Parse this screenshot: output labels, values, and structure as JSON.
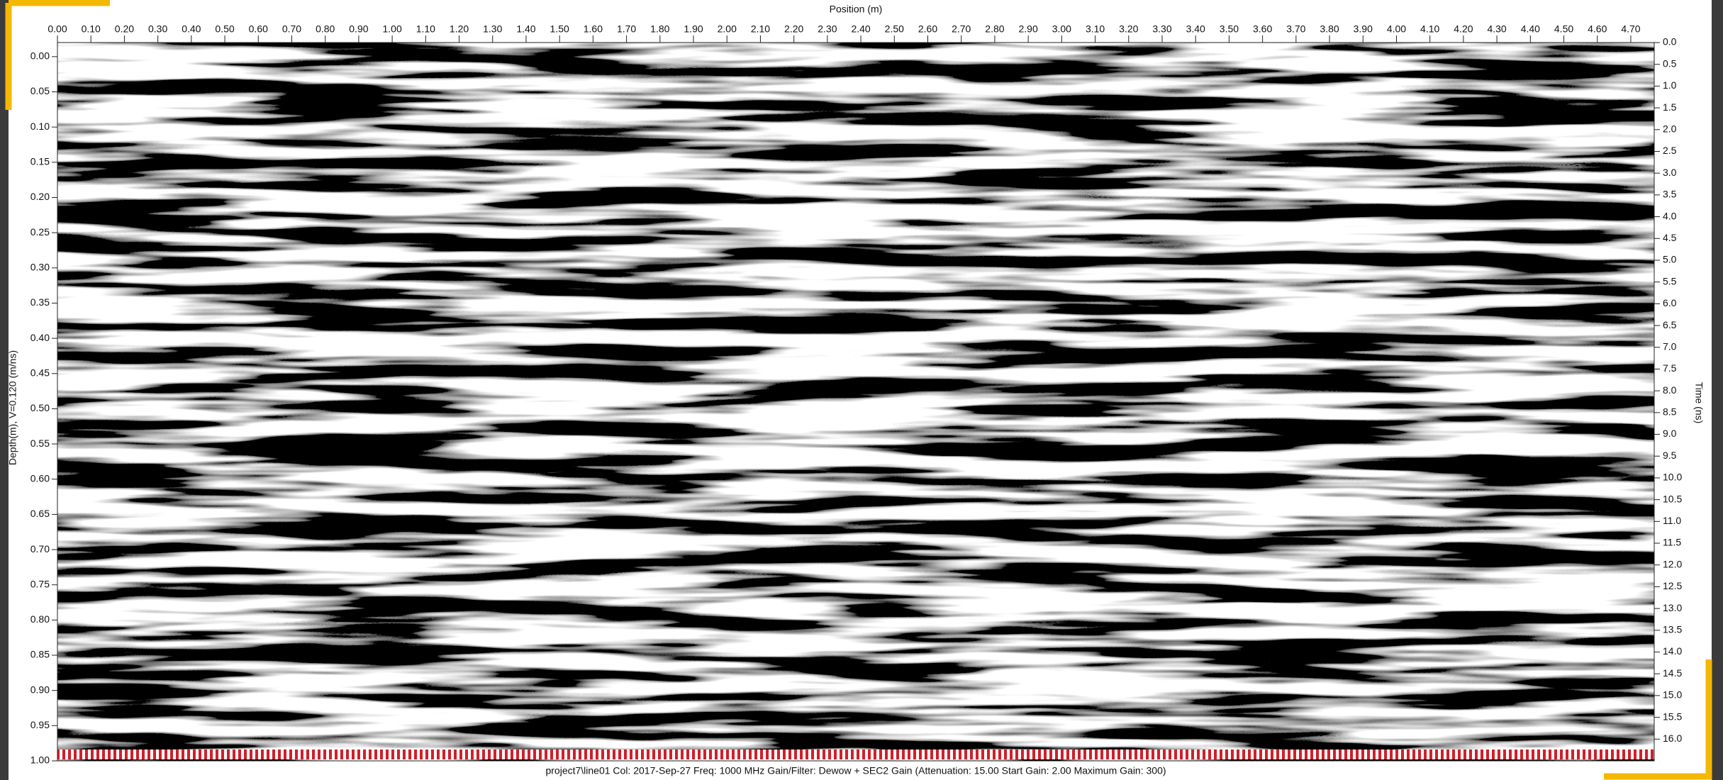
{
  "chart_data": {
    "type": "radargram",
    "title": "Position (m)",
    "y_label": "Depth(m), V=0.120 (m/ns)",
    "y2_label": "Time (ns)",
    "footer": "project7\\line01  Col: 2017-Sep-27 Freq: 1000 MHz Gain/Filter: Dewow + SEC2 Gain (Attenuation: 15.00 Start Gain: 2.00 Maximum Gain: 300)",
    "xlim": [
      0,
      4.77
    ],
    "ylim": [
      -0.02,
      1.0
    ],
    "y2lim": [
      0,
      16.5
    ],
    "xticks": [
      {
        "value": 0,
        "label": "0.00"
      },
      {
        "value": 0.1,
        "label": "0.10"
      },
      {
        "value": 0.2,
        "label": "0.20"
      },
      {
        "value": 0.3,
        "label": "0.30"
      },
      {
        "value": 0.4,
        "label": "0.40"
      },
      {
        "value": 0.5,
        "label": "0.50"
      },
      {
        "value": 0.6,
        "label": "0.60"
      },
      {
        "value": 0.7,
        "label": "0.70"
      },
      {
        "value": 0.8,
        "label": "0.80"
      },
      {
        "value": 0.9,
        "label": "0.90"
      },
      {
        "value": 1.0,
        "label": "1.00"
      },
      {
        "value": 1.1,
        "label": "1.10"
      },
      {
        "value": 1.2,
        "label": "1.20"
      },
      {
        "value": 1.3,
        "label": "1.30"
      },
      {
        "value": 1.4,
        "label": "1.40"
      },
      {
        "value": 1.5,
        "label": "1.50"
      },
      {
        "value": 1.6,
        "label": "1.60"
      },
      {
        "value": 1.7,
        "label": "1.70"
      },
      {
        "value": 1.8,
        "label": "1.80"
      },
      {
        "value": 1.9,
        "label": "1.90"
      },
      {
        "value": 2.0,
        "label": "2.00"
      },
      {
        "value": 2.1,
        "label": "2.10"
      },
      {
        "value": 2.2,
        "label": "2.20"
      },
      {
        "value": 2.3,
        "label": "2.30"
      },
      {
        "value": 2.4,
        "label": "2.40"
      },
      {
        "value": 2.5,
        "label": "2.50"
      },
      {
        "value": 2.6,
        "label": "2.60"
      },
      {
        "value": 2.7,
        "label": "2.70"
      },
      {
        "value": 2.8,
        "label": "2.80"
      },
      {
        "value": 2.9,
        "label": "2.90"
      },
      {
        "value": 3.0,
        "label": "3.00"
      },
      {
        "value": 3.1,
        "label": "3.10"
      },
      {
        "value": 3.2,
        "label": "3.20"
      },
      {
        "value": 3.3,
        "label": "3.30"
      },
      {
        "value": 3.4,
        "label": "3.40"
      },
      {
        "value": 3.5,
        "label": "3.50"
      },
      {
        "value": 3.6,
        "label": "3.60"
      },
      {
        "value": 3.7,
        "label": "3.70"
      },
      {
        "value": 3.8,
        "label": "3.80"
      },
      {
        "value": 3.9,
        "label": "3.90"
      },
      {
        "value": 4.0,
        "label": "4.00"
      },
      {
        "value": 4.1,
        "label": "4.10"
      },
      {
        "value": 4.2,
        "label": "4.20"
      },
      {
        "value": 4.3,
        "label": "4.30"
      },
      {
        "value": 4.4,
        "label": "4.40"
      },
      {
        "value": 4.5,
        "label": "4.50"
      },
      {
        "value": 4.6,
        "label": "4.60"
      },
      {
        "value": 4.7,
        "label": "4.70"
      }
    ],
    "yticks": [
      {
        "value": 0,
        "label": "0.00"
      },
      {
        "value": 0.05,
        "label": "0.05"
      },
      {
        "value": 0.1,
        "label": "0.10"
      },
      {
        "value": 0.15,
        "label": "0.15"
      },
      {
        "value": 0.2,
        "label": "0.20"
      },
      {
        "value": 0.25,
        "label": "0.25"
      },
      {
        "value": 0.3,
        "label": "0.30"
      },
      {
        "value": 0.35,
        "label": "0.35"
      },
      {
        "value": 0.4,
        "label": "0.40"
      },
      {
        "value": 0.45,
        "label": "0.45"
      },
      {
        "value": 0.5,
        "label": "0.50"
      },
      {
        "value": 0.55,
        "label": "0.55"
      },
      {
        "value": 0.6,
        "label": "0.60"
      },
      {
        "value": 0.65,
        "label": "0.65"
      },
      {
        "value": 0.7,
        "label": "0.70"
      },
      {
        "value": 0.75,
        "label": "0.75"
      },
      {
        "value": 0.8,
        "label": "0.80"
      },
      {
        "value": 0.85,
        "label": "0.85"
      },
      {
        "value": 0.9,
        "label": "0.90"
      },
      {
        "value": 0.95,
        "label": "0.95"
      },
      {
        "value": 1.0,
        "label": "1.00"
      }
    ],
    "y2ticks": [
      {
        "value": 0,
        "label": "0.0"
      },
      {
        "value": 0.5,
        "label": "0.5"
      },
      {
        "value": 1,
        "label": "1.0"
      },
      {
        "value": 1.5,
        "label": "1.5"
      },
      {
        "value": 2,
        "label": "2.0"
      },
      {
        "value": 2.5,
        "label": "2.5"
      },
      {
        "value": 3,
        "label": "3.0"
      },
      {
        "value": 3.5,
        "label": "3.5"
      },
      {
        "value": 4,
        "label": "4.0"
      },
      {
        "value": 4.5,
        "label": "4.5"
      },
      {
        "value": 5,
        "label": "5.0"
      },
      {
        "value": 5.5,
        "label": "5.5"
      },
      {
        "value": 6,
        "label": "6.0"
      },
      {
        "value": 6.5,
        "label": "6.5"
      },
      {
        "value": 7,
        "label": "7.0"
      },
      {
        "value": 7.5,
        "label": "7.5"
      },
      {
        "value": 8,
        "label": "8.0"
      },
      {
        "value": 8.5,
        "label": "8.5"
      },
      {
        "value": 9,
        "label": "9.0"
      },
      {
        "value": 9.5,
        "label": "9.5"
      },
      {
        "value": 10,
        "label": "10.0"
      },
      {
        "value": 10.5,
        "label": "10.5"
      },
      {
        "value": 11,
        "label": "11.0"
      },
      {
        "value": 11.5,
        "label": "11.5"
      },
      {
        "value": 12,
        "label": "12.0"
      },
      {
        "value": 12.5,
        "label": "12.5"
      },
      {
        "value": 13,
        "label": "13.0"
      },
      {
        "value": 13.5,
        "label": "13.5"
      },
      {
        "value": 14,
        "label": "14.0"
      },
      {
        "value": 14.5,
        "label": "14.5"
      },
      {
        "value": 15,
        "label": "15.0"
      },
      {
        "value": 15.5,
        "label": "15.5"
      },
      {
        "value": 16,
        "label": "16.0"
      }
    ]
  }
}
